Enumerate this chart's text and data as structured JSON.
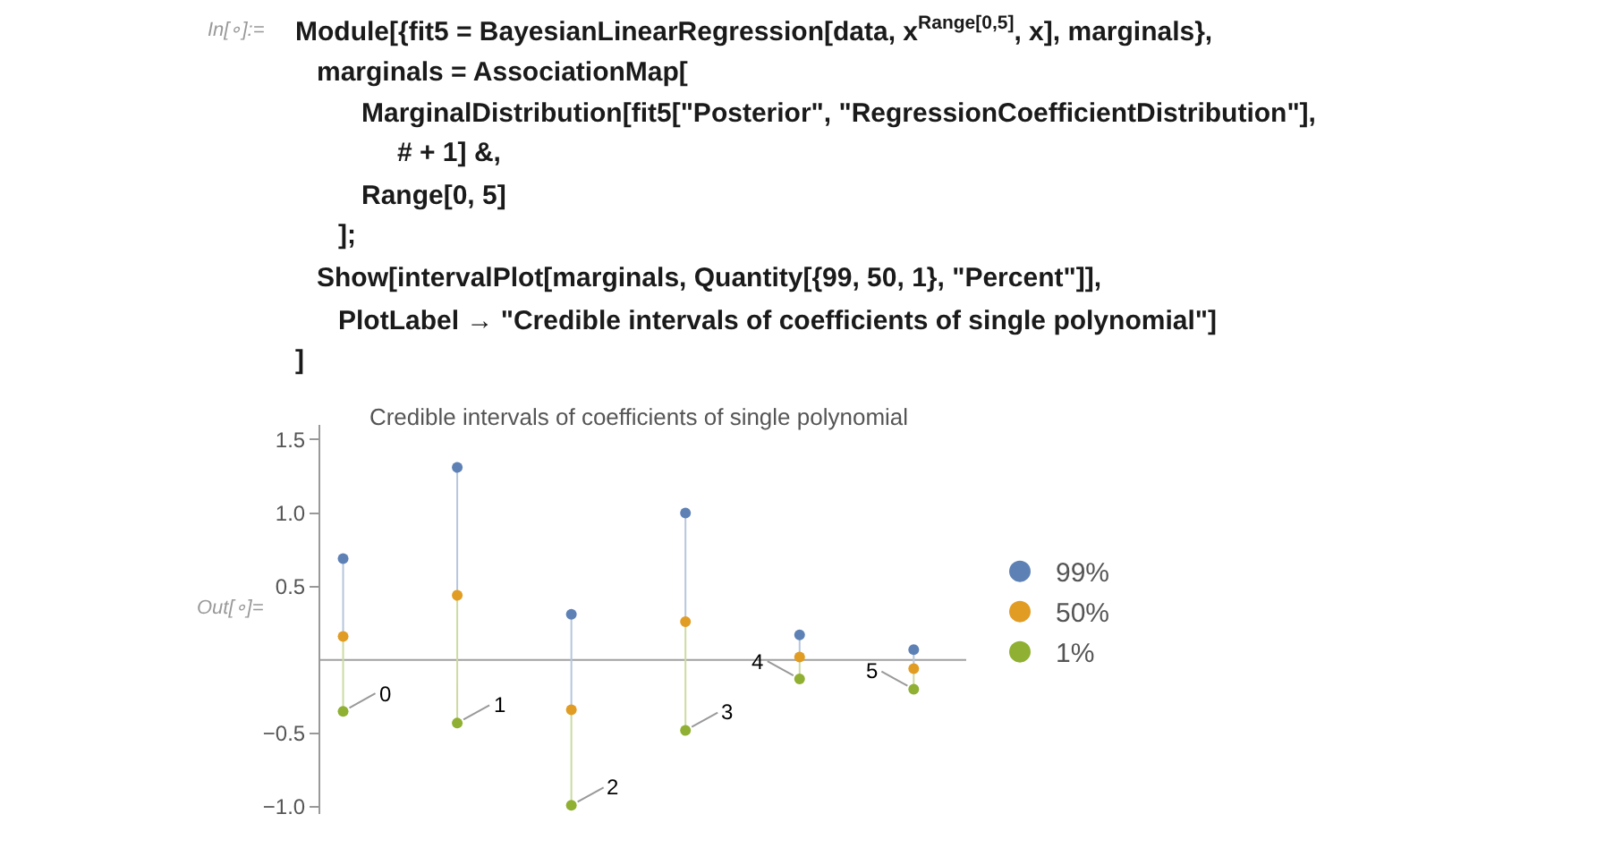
{
  "chart_data": {
    "type": "scatter",
    "title": "Credible intervals of coefficients of single polynomial",
    "categories": [
      null,
      null,
      null,
      null,
      null,
      null
    ],
    "series": [
      {
        "name": "99%",
        "color": "#5e81b5",
        "values": [
          0.69,
          1.31,
          0.31,
          1.0,
          0.17,
          0.07
        ]
      },
      {
        "name": "50%",
        "color": "#e19c24",
        "values": [
          0.16,
          0.44,
          -0.34,
          0.26,
          0.02,
          -0.06
        ]
      },
      {
        "name": "1%",
        "color": "#8fb032",
        "values": [
          -0.35,
          -0.43,
          -0.99,
          -0.48,
          -0.13,
          -0.2
        ]
      }
    ],
    "ylim": [
      -1.05,
      1.6
    ],
    "yticks": [
      {
        "value": -1,
        "label": "−1.0"
      },
      -0.5,
      0.5,
      {
        "value": 1,
        "label": "1.0"
      },
      1.5
    ],
    "ref_lines": [
      {
        "axis": "y",
        "value": 0,
        "color": "#a0a0a0"
      }
    ],
    "marker": "circle",
    "legend": "right",
    "grid": false,
    "tick_labels": "y",
    "annotations": [
      "Module[{fit5 = BayesianLinearRegression[data, x$^{Range[0,5]}$, x], marginals},",
      "marginals = AssociationMap[",
      "MarginalDistribution[fit5[\"Posterior\", \"RegressionCoefficientDistribution\"],",
      "# + 1] &,",
      "Range[0, 5]",
      "];",
      "Show[intervalPlot[marginals, Quantity[{99, 50, 1}, \"Percent\"]],",
      "PlotLabel → \"Credible intervals of coefficients of single polynomial\"]",
      "]",
      "In[∘]:=",
      "Out[∘]=",
      "0",
      "1",
      "2",
      "3",
      "4",
      "5"
    ]
  }
}
